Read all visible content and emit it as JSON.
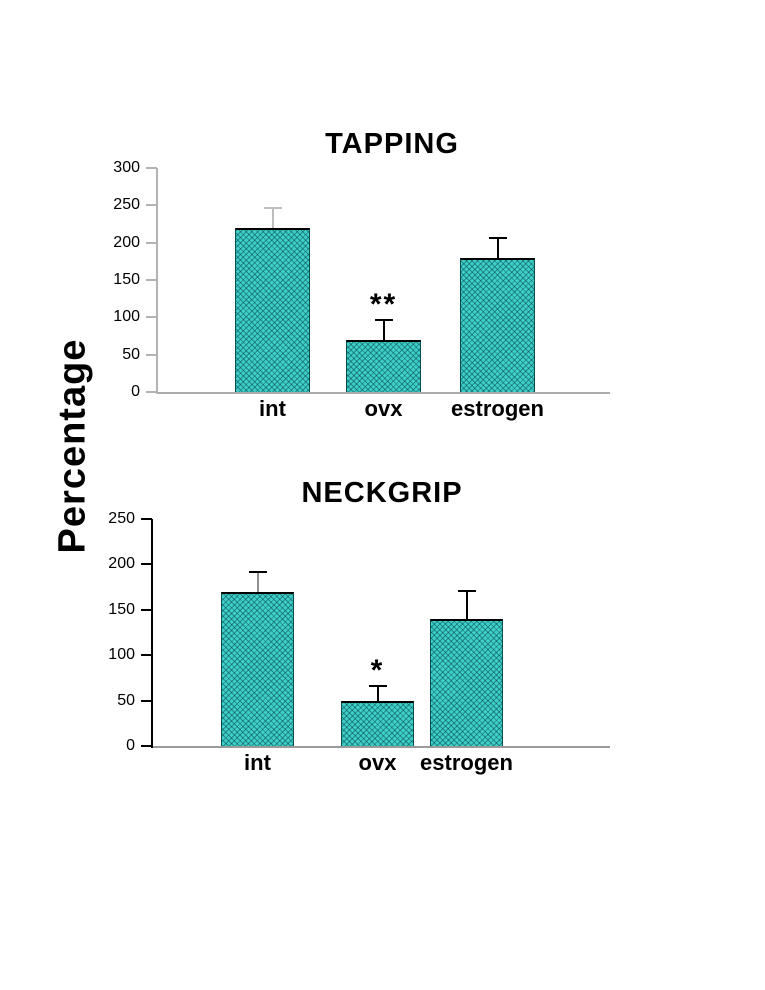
{
  "page": {
    "background": "#ffffff"
  },
  "ylabel": "Percentage",
  "chart_data": [
    {
      "type": "bar",
      "title": "TAPPING",
      "categories": [
        "int",
        "ovx",
        "estrogen"
      ],
      "values": [
        220,
        70,
        180
      ],
      "error_plus": [
        25,
        25,
        25
      ],
      "annotations": [
        "",
        "**",
        ""
      ],
      "yticks": [
        0,
        50,
        100,
        150,
        200,
        250,
        300
      ],
      "ylim": [
        0,
        300
      ],
      "xlabel": "",
      "ylabel": "Percentage",
      "grid": false,
      "legend": false,
      "bar_color": "#3fcfca",
      "bar_pattern": "rgba(4,70,70,0.5)",
      "axis_color": "#b3b3b3",
      "baseline_color": "#ababab",
      "error_styles": [
        {
          "stem": "#bdbdbd",
          "cap": "#bdbdbd"
        },
        {
          "stem": "#000000",
          "cap": "#000000"
        },
        {
          "stem": "#000000",
          "cap": "#000000"
        }
      ]
    },
    {
      "type": "bar",
      "title": "NECKGRIP",
      "categories": [
        "int",
        "ovx",
        "estrogen"
      ],
      "values": [
        170,
        50,
        140
      ],
      "error_plus": [
        20,
        15,
        30
      ],
      "annotations": [
        "",
        "*",
        ""
      ],
      "yticks": [
        0,
        50,
        100,
        150,
        200,
        250
      ],
      "ylim": [
        0,
        250
      ],
      "xlabel": "",
      "ylabel": "Percentage",
      "grid": false,
      "legend": false,
      "bar_color": "#3fcfca",
      "bar_pattern": "rgba(4,70,70,0.5)",
      "axis_color": "#000000",
      "baseline_color": "#9a9a9a",
      "error_styles": [
        {
          "stem": "#8f8f8f",
          "cap": "#000000"
        },
        {
          "stem": "#000000",
          "cap": "#000000"
        },
        {
          "stem": "#000000",
          "cap": "#000000"
        }
      ]
    }
  ]
}
